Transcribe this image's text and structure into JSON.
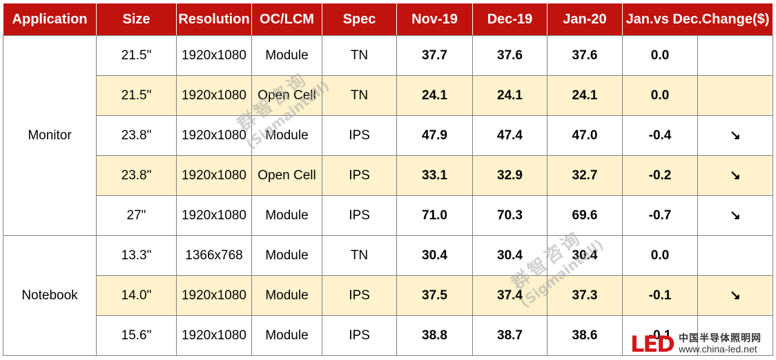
{
  "table": {
    "headers": [
      "Application",
      "Size",
      "Resolution",
      "OC/LCM",
      "Spec",
      "Nov-19",
      "Dec-19",
      "Jan-20",
      "Jan.vs Dec.Change($)"
    ],
    "groups": [
      {
        "application": "Monitor",
        "rows": [
          {
            "size": "21.5\"",
            "resolution": "1920x1080",
            "oc_lcm": "Module",
            "spec": "TN",
            "nov19": "37.7",
            "dec19": "37.6",
            "jan20": "37.6",
            "change": "0.0",
            "trend": "",
            "shaded": false
          },
          {
            "size": "21.5\"",
            "resolution": "1920x1080",
            "oc_lcm": "Open Cell",
            "spec": "TN",
            "nov19": "24.1",
            "dec19": "24.1",
            "jan20": "24.1",
            "change": "0.0",
            "trend": "",
            "shaded": true
          },
          {
            "size": "23.8\"",
            "resolution": "1920x1080",
            "oc_lcm": "Module",
            "spec": "IPS",
            "nov19": "47.9",
            "dec19": "47.4",
            "jan20": "47.0",
            "change": "-0.4",
            "trend": "↘",
            "shaded": false
          },
          {
            "size": "23.8\"",
            "resolution": "1920x1080",
            "oc_lcm": "Open Cell",
            "spec": "IPS",
            "nov19": "33.1",
            "dec19": "32.9",
            "jan20": "32.7",
            "change": "-0.2",
            "trend": "↘",
            "shaded": true
          },
          {
            "size": "27\"",
            "resolution": "1920x1080",
            "oc_lcm": "Module",
            "spec": "IPS",
            "nov19": "71.0",
            "dec19": "70.3",
            "jan20": "69.6",
            "change": "-0.7",
            "trend": "↘",
            "shaded": false
          }
        ]
      },
      {
        "application": "Notebook",
        "rows": [
          {
            "size": "13.3\"",
            "resolution": "1366x768",
            "oc_lcm": "Module",
            "spec": "TN",
            "nov19": "30.4",
            "dec19": "30.4",
            "jan20": "30.4",
            "change": "0.0",
            "trend": "",
            "shaded": false
          },
          {
            "size": "14.0\"",
            "resolution": "1920x1080",
            "oc_lcm": "Module",
            "spec": "IPS",
            "nov19": "37.5",
            "dec19": "37.4",
            "jan20": "37.3",
            "change": "-0.1",
            "trend": "↘",
            "shaded": true
          },
          {
            "size": "15.6\"",
            "resolution": "1920x1080",
            "oc_lcm": "Module",
            "spec": "IPS",
            "nov19": "38.8",
            "dec19": "38.7",
            "jan20": "38.6",
            "change": "-0.1",
            "trend": "",
            "shaded": false
          }
        ]
      }
    ]
  },
  "watermark": {
    "name_cn": "群智咨询",
    "name_en": "(Sigmaintell)"
  },
  "logo": {
    "mark": "LED",
    "site_name": "中国半导体照明网",
    "site_url": "www.china-led.net"
  },
  "colors": {
    "header_bg": "#c0130e",
    "shaded_row": "#fff2cc",
    "trend_down": "#1ea85a",
    "logo_red": "#d3161b"
  }
}
